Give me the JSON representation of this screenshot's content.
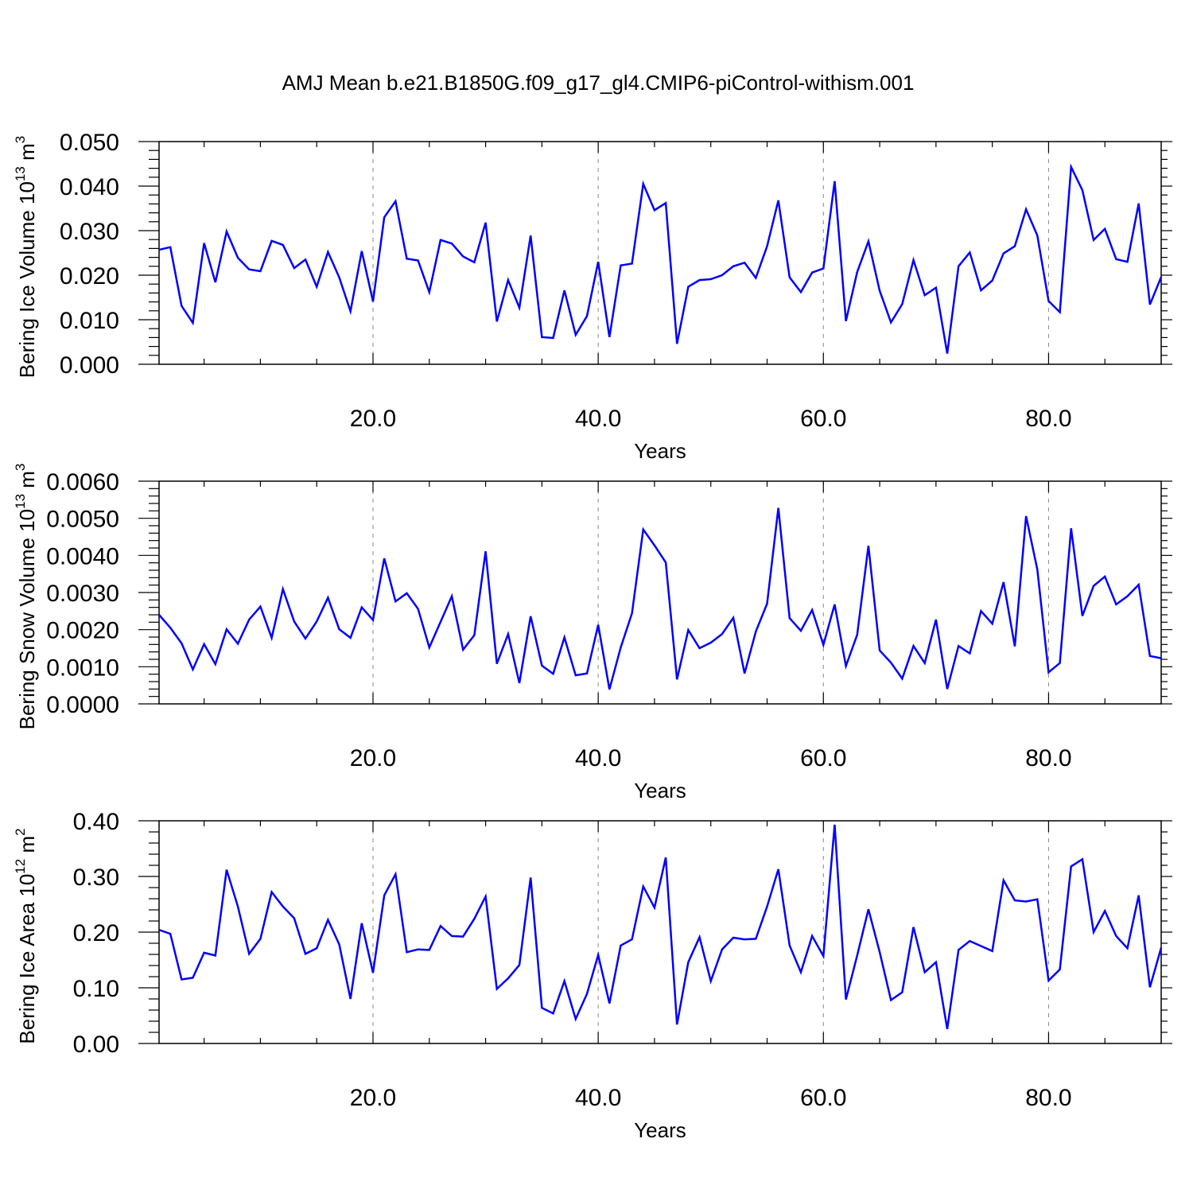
{
  "title": "AMJ Mean b.e21.B1850G.f09_g17_gl4.CMIP6-piControl-withism.001",
  "line_color": "#0000ff",
  "chart_data": [
    {
      "type": "line",
      "ylabel_main": "Bering Ice Volume 10",
      "ylabel_sup1": "13",
      "ylabel_unit": " m",
      "ylabel_sup2": "3",
      "xlabel": "Years",
      "xlim": [
        1,
        90
      ],
      "ylim": [
        0,
        0.05
      ],
      "x_ticks": [
        20,
        40,
        60,
        80
      ],
      "x_tick_labels": [
        "20.0",
        "40.0",
        "60.0",
        "80.0"
      ],
      "y_ticks": [
        0,
        0.01,
        0.02,
        0.03,
        0.04,
        0.05
      ],
      "y_tick_labels": [
        "0.000",
        "0.010",
        "0.020",
        "0.030",
        "0.040",
        "0.050"
      ],
      "grid": "vertical-dashed",
      "x": [
        1,
        2,
        3,
        4,
        5,
        6,
        7,
        8,
        9,
        10,
        11,
        12,
        13,
        14,
        15,
        16,
        17,
        18,
        19,
        20,
        21,
        22,
        23,
        24,
        25,
        26,
        27,
        28,
        29,
        30,
        31,
        32,
        33,
        34,
        35,
        36,
        37,
        38,
        39,
        40,
        41,
        42,
        43,
        44,
        45,
        46,
        47,
        48,
        49,
        50,
        51,
        52,
        53,
        54,
        55,
        56,
        57,
        58,
        59,
        60,
        61,
        62,
        63,
        64,
        65,
        66,
        67,
        68,
        69,
        70,
        71,
        72,
        73,
        74,
        75,
        76,
        77,
        78,
        79,
        80,
        81,
        82,
        83,
        84,
        85,
        86,
        87,
        88,
        89,
        90
      ],
      "values": [
        0.0257,
        0.0263,
        0.0131,
        0.0093,
        0.0272,
        0.0184,
        0.0298,
        0.0239,
        0.0213,
        0.0209,
        0.0277,
        0.0268,
        0.0216,
        0.0235,
        0.0174,
        0.0252,
        0.0195,
        0.0119,
        0.0254,
        0.0141,
        0.033,
        0.0366,
        0.0237,
        0.0233,
        0.0162,
        0.0279,
        0.0271,
        0.0242,
        0.0229,
        0.0318,
        0.0096,
        0.0189,
        0.0127,
        0.0289,
        0.0061,
        0.0059,
        0.0166,
        0.0066,
        0.0108,
        0.023,
        0.0061,
        0.0222,
        0.0226,
        0.0405,
        0.0346,
        0.0362,
        0.0046,
        0.0174,
        0.0189,
        0.0191,
        0.02,
        0.022,
        0.0228,
        0.0194,
        0.0265,
        0.0368,
        0.0195,
        0.0162,
        0.0206,
        0.0215,
        0.0411,
        0.0097,
        0.0207,
        0.0276,
        0.0165,
        0.0094,
        0.0135,
        0.0234,
        0.0155,
        0.0172,
        0.0024,
        0.022,
        0.0251,
        0.0166,
        0.0188,
        0.0249,
        0.0265,
        0.0348,
        0.0289,
        0.0142,
        0.0117,
        0.0443,
        0.0391,
        0.0279,
        0.0304,
        0.0236,
        0.023,
        0.0361,
        0.0134,
        0.0196
      ]
    },
    {
      "type": "line",
      "ylabel_main": "Bering Snow Volume 10",
      "ylabel_sup1": "13",
      "ylabel_unit": " m",
      "ylabel_sup2": "3",
      "xlabel": "Years",
      "xlim": [
        1,
        90
      ],
      "ylim": [
        0,
        0.006
      ],
      "x_ticks": [
        20,
        40,
        60,
        80
      ],
      "x_tick_labels": [
        "20.0",
        "40.0",
        "60.0",
        "80.0"
      ],
      "y_ticks": [
        0,
        0.001,
        0.002,
        0.003,
        0.004,
        0.005,
        0.006
      ],
      "y_tick_labels": [
        "0.0000",
        "0.0010",
        "0.0020",
        "0.0030",
        "0.0040",
        "0.0050",
        "0.0060"
      ],
      "grid": "vertical-dashed",
      "x": [
        1,
        2,
        3,
        4,
        5,
        6,
        7,
        8,
        9,
        10,
        11,
        12,
        13,
        14,
        15,
        16,
        17,
        18,
        19,
        20,
        21,
        22,
        23,
        24,
        25,
        26,
        27,
        28,
        29,
        30,
        31,
        32,
        33,
        34,
        35,
        36,
        37,
        38,
        39,
        40,
        41,
        42,
        43,
        44,
        45,
        46,
        47,
        48,
        49,
        50,
        51,
        52,
        53,
        54,
        55,
        56,
        57,
        58,
        59,
        60,
        61,
        62,
        63,
        64,
        65,
        66,
        67,
        68,
        69,
        70,
        71,
        72,
        73,
        74,
        75,
        76,
        77,
        78,
        79,
        80,
        81,
        82,
        83,
        84,
        85,
        86,
        87,
        88,
        89,
        90
      ],
      "values": [
        0.0024,
        0.00205,
        0.00163,
        0.00093,
        0.00161,
        0.00107,
        0.00201,
        0.00162,
        0.00227,
        0.00262,
        0.00178,
        0.00309,
        0.00222,
        0.00176,
        0.00222,
        0.00286,
        0.00201,
        0.00178,
        0.0026,
        0.00226,
        0.00392,
        0.00276,
        0.00298,
        0.00256,
        0.00152,
        0.00221,
        0.0029,
        0.00146,
        0.00185,
        0.00411,
        0.00108,
        0.00188,
        0.00056,
        0.00236,
        0.00103,
        0.00081,
        0.00179,
        0.00077,
        0.00082,
        0.00213,
        0.00039,
        0.00152,
        0.00244,
        0.0047,
        0.00427,
        0.00381,
        0.00066,
        0.00199,
        0.0015,
        0.00165,
        0.00188,
        0.00232,
        0.00082,
        0.00195,
        0.0027,
        0.00528,
        0.00231,
        0.00197,
        0.00253,
        0.00159,
        0.00268,
        0.00102,
        0.00186,
        0.00426,
        0.00144,
        0.00111,
        0.00068,
        0.00156,
        0.0011,
        0.00227,
        0.0004,
        0.00156,
        0.00136,
        0.0025,
        0.00216,
        0.00328,
        0.00155,
        0.00506,
        0.00362,
        0.00085,
        0.0011,
        0.00473,
        0.00237,
        0.00318,
        0.00343,
        0.00268,
        0.0029,
        0.00321,
        0.00129,
        0.00123
      ]
    },
    {
      "type": "line",
      "ylabel_main": "Bering Ice Area 10",
      "ylabel_sup1": "12",
      "ylabel_unit": " m",
      "ylabel_sup2": "2",
      "xlabel": "Years",
      "xlim": [
        1,
        90
      ],
      "ylim": [
        0,
        0.4
      ],
      "x_ticks": [
        20,
        40,
        60,
        80
      ],
      "x_tick_labels": [
        "20.0",
        "40.0",
        "60.0",
        "80.0"
      ],
      "y_ticks": [
        0,
        0.1,
        0.2,
        0.3,
        0.4
      ],
      "y_tick_labels": [
        "0.00",
        "0.10",
        "0.20",
        "0.30",
        "0.40"
      ],
      "grid": "vertical-dashed",
      "x": [
        1,
        2,
        3,
        4,
        5,
        6,
        7,
        8,
        9,
        10,
        11,
        12,
        13,
        14,
        15,
        16,
        17,
        18,
        19,
        20,
        21,
        22,
        23,
        24,
        25,
        26,
        27,
        28,
        29,
        30,
        31,
        32,
        33,
        34,
        35,
        36,
        37,
        38,
        39,
        40,
        41,
        42,
        43,
        44,
        45,
        46,
        47,
        48,
        49,
        50,
        51,
        52,
        53,
        54,
        55,
        56,
        57,
        58,
        59,
        60,
        61,
        62,
        63,
        64,
        65,
        66,
        67,
        68,
        69,
        70,
        71,
        72,
        73,
        74,
        75,
        76,
        77,
        78,
        79,
        80,
        81,
        82,
        83,
        84,
        85,
        86,
        87,
        88,
        89,
        90
      ],
      "values": [
        0.204,
        0.197,
        0.115,
        0.118,
        0.163,
        0.158,
        0.312,
        0.246,
        0.161,
        0.188,
        0.272,
        0.246,
        0.225,
        0.161,
        0.171,
        0.222,
        0.178,
        0.08,
        0.216,
        0.127,
        0.266,
        0.304,
        0.164,
        0.169,
        0.168,
        0.211,
        0.193,
        0.192,
        0.224,
        0.264,
        0.098,
        0.117,
        0.141,
        0.298,
        0.064,
        0.054,
        0.112,
        0.044,
        0.089,
        0.159,
        0.072,
        0.176,
        0.187,
        0.282,
        0.244,
        0.334,
        0.034,
        0.146,
        0.191,
        0.112,
        0.169,
        0.19,
        0.187,
        0.188,
        0.246,
        0.313,
        0.176,
        0.128,
        0.193,
        0.157,
        0.393,
        0.079,
        0.158,
        0.241,
        0.164,
        0.078,
        0.092,
        0.209,
        0.128,
        0.146,
        0.026,
        0.168,
        0.184,
        0.175,
        0.166,
        0.293,
        0.257,
        0.255,
        0.259,
        0.113,
        0.133,
        0.318,
        0.331,
        0.2,
        0.238,
        0.193,
        0.171,
        0.266,
        0.101,
        0.172
      ]
    }
  ]
}
